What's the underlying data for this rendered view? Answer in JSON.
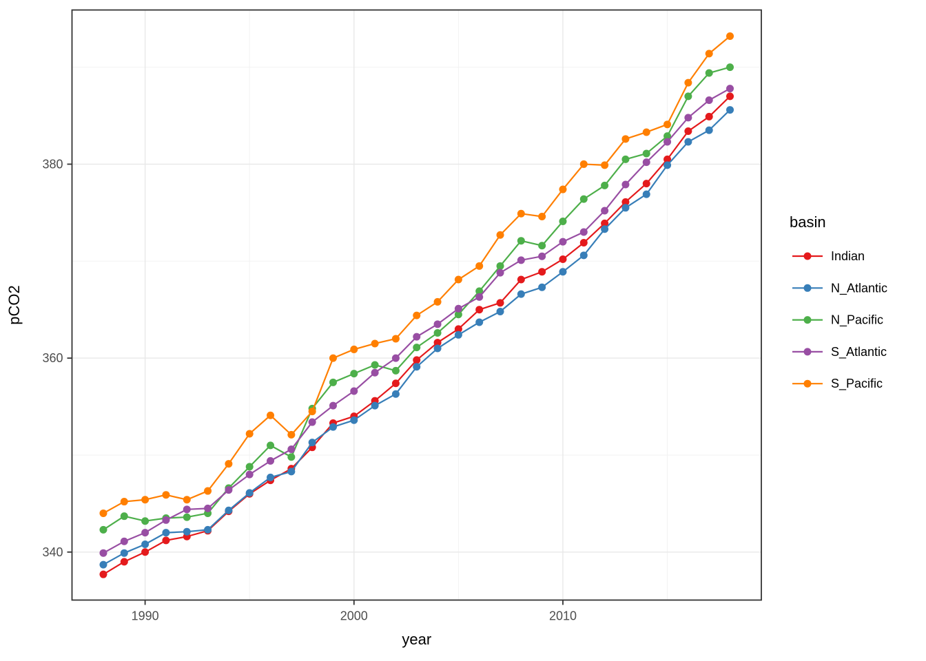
{
  "chart_data": {
    "type": "line",
    "title": "",
    "xlabel": "year",
    "ylabel": "pCO2",
    "legend_title": "basin",
    "legend_position": "right",
    "grid": true,
    "x_range": [
      1986.5,
      2019.5
    ],
    "y_range": [
      335.05,
      395.9
    ],
    "x_ticks": [
      1990,
      2000,
      2010
    ],
    "x_tick_labels": [
      "1990",
      "2000",
      "2010"
    ],
    "y_ticks": [
      340,
      360,
      380
    ],
    "y_tick_labels": [
      "340",
      "360",
      "380"
    ],
    "x_minor": [
      1995,
      2005,
      2015
    ],
    "y_minor": [
      350,
      370,
      390
    ],
    "x": [
      1988,
      1989,
      1990,
      1991,
      1992,
      1993,
      1994,
      1995,
      1996,
      1997,
      1998,
      1999,
      2000,
      2001,
      2002,
      2003,
      2004,
      2005,
      2006,
      2007,
      2008,
      2009,
      2010,
      2011,
      2012,
      2013,
      2014,
      2015,
      2016,
      2017,
      2018
    ],
    "series": [
      {
        "name": "Indian",
        "color": "#E41A1C",
        "values": [
          337.7,
          339.0,
          340.0,
          341.2,
          341.6,
          342.2,
          344.2,
          346.0,
          347.4,
          348.6,
          350.8,
          353.3,
          354.0,
          355.6,
          357.4,
          359.8,
          361.6,
          363.0,
          365.0,
          365.7,
          368.1,
          368.9,
          370.2,
          371.9,
          373.9,
          376.1,
          378.0,
          380.5,
          383.4,
          384.9,
          387.0
        ]
      },
      {
        "name": "N_Atlantic",
        "color": "#377EB8",
        "values": [
          338.7,
          339.9,
          340.8,
          342.0,
          342.1,
          342.3,
          344.3,
          346.1,
          347.7,
          348.3,
          351.3,
          352.9,
          353.6,
          355.1,
          356.3,
          359.1,
          361.0,
          362.4,
          363.7,
          364.8,
          366.6,
          367.3,
          368.9,
          370.6,
          373.3,
          375.5,
          376.9,
          379.9,
          382.3,
          383.5,
          385.6
        ]
      },
      {
        "name": "N_Pacific",
        "color": "#4DAF4A",
        "values": [
          342.3,
          343.7,
          343.2,
          343.5,
          343.6,
          344.0,
          346.6,
          348.8,
          351.0,
          349.8,
          354.8,
          357.5,
          358.4,
          359.3,
          358.7,
          361.1,
          362.6,
          364.5,
          366.9,
          369.5,
          372.1,
          371.6,
          374.1,
          376.4,
          377.8,
          380.5,
          381.1,
          382.9,
          387.0,
          389.4,
          390.0
        ]
      },
      {
        "name": "S_Atlantic",
        "color": "#984EA3",
        "values": [
          339.9,
          341.1,
          342.0,
          343.3,
          344.4,
          344.5,
          346.4,
          348.0,
          349.4,
          350.6,
          353.4,
          355.1,
          356.6,
          358.5,
          360.0,
          362.2,
          363.5,
          365.1,
          366.3,
          368.8,
          370.1,
          370.5,
          372.0,
          373.0,
          375.2,
          377.9,
          380.2,
          382.3,
          384.8,
          386.6,
          387.8
        ]
      },
      {
        "name": "S_Pacific",
        "color": "#FF7F00",
        "values": [
          344.0,
          345.2,
          345.4,
          345.9,
          345.4,
          346.3,
          349.1,
          352.2,
          354.1,
          352.1,
          354.5,
          360.0,
          360.9,
          361.5,
          362.0,
          364.4,
          365.8,
          368.1,
          369.5,
          372.7,
          374.9,
          374.6,
          377.4,
          380.0,
          379.9,
          382.6,
          383.3,
          384.1,
          388.4,
          391.4,
          393.2
        ]
      }
    ]
  },
  "style": {
    "panel_border": "#333333",
    "tick_color": "#333333",
    "tick_label_color": "#4D4D4D",
    "title_color": "#000000",
    "grid_major": "#E8E8E8",
    "grid_minor": "#F2F2F2",
    "background": "#FFFFFF"
  }
}
